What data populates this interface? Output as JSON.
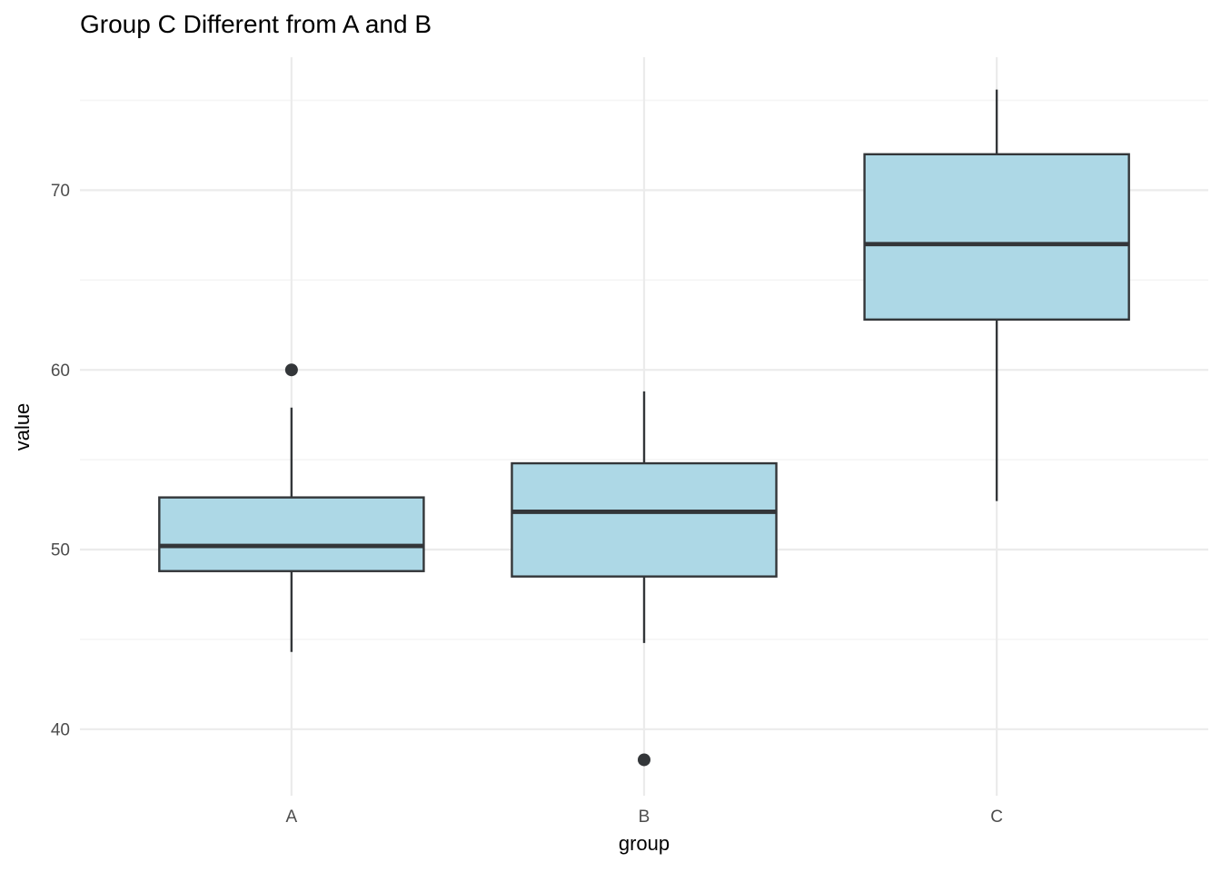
{
  "chart_data": {
    "type": "boxplot",
    "title": "Group C Different from A and B",
    "xlabel": "group",
    "ylabel": "value",
    "categories": [
      "A",
      "B",
      "C"
    ],
    "series": [
      {
        "name": "A",
        "whisker_low": 44.3,
        "q1": 48.8,
        "median": 50.2,
        "q3": 52.9,
        "whisker_high": 57.9,
        "outliers": [
          60.0
        ]
      },
      {
        "name": "B",
        "whisker_low": 44.8,
        "q1": 48.5,
        "median": 52.1,
        "q3": 54.8,
        "whisker_high": 58.8,
        "outliers": [
          38.3
        ]
      },
      {
        "name": "C",
        "whisker_low": 52.7,
        "q1": 62.8,
        "median": 67.0,
        "q3": 72.0,
        "whisker_high": 75.6,
        "outliers": []
      }
    ],
    "ylim": [
      36.3,
      77.4
    ],
    "yticks_major": [
      40,
      50,
      60,
      70
    ],
    "yticks_minor": [
      45,
      55,
      65,
      75
    ],
    "grid": true,
    "legend": "none",
    "style": {
      "box_fill": "#ADD8E6",
      "box_stroke": "#333639",
      "outlier_color": "#333639",
      "grid_major_color": "#EBEBEB",
      "grid_minor_color": "#F5F5F5",
      "tick_label_color": "#4D4D4D",
      "title_color": "#000000",
      "background": "#FFFFFF"
    }
  }
}
